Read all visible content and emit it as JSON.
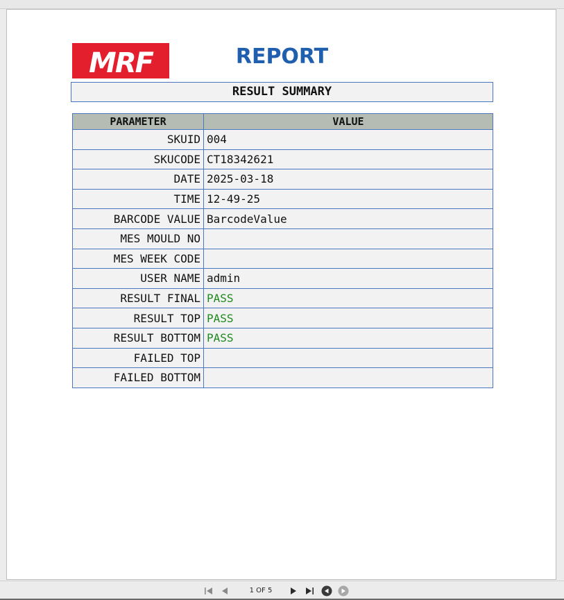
{
  "report": {
    "logo_text": "MRF",
    "title": "REPORT",
    "summary_title": "RESULT SUMMARY"
  },
  "table": {
    "headers": [
      "PARAMETER",
      "VALUE"
    ],
    "rows": [
      {
        "param": "SKUID",
        "value": "004"
      },
      {
        "param": "SKUCODE",
        "value": "CT18342621"
      },
      {
        "param": "DATE",
        "value": "2025-03-18"
      },
      {
        "param": "TIME",
        "value": "12-49-25"
      },
      {
        "param": "BARCODE VALUE",
        "value": "BarcodeValue"
      },
      {
        "param": "MES MOULD NO",
        "value": ""
      },
      {
        "param": "MES WEEK CODE",
        "value": ""
      },
      {
        "param": "USER NAME",
        "value": "admin"
      },
      {
        "param": "RESULT FINAL",
        "value": "PASS"
      },
      {
        "param": "RESULT TOP",
        "value": "PASS"
      },
      {
        "param": "RESULT BOTTOM",
        "value": "PASS"
      },
      {
        "param": "FAILED TOP",
        "value": ""
      },
      {
        "param": "FAILED BOTTOM",
        "value": ""
      }
    ]
  },
  "toolbar": {
    "page_indicator": "1 OF 5",
    "buttons": [
      "first-page-icon",
      "previous-page-icon",
      "next-page-icon",
      "last-page-icon",
      "back-icon",
      "forward-icon"
    ]
  },
  "colors": {
    "logo_red": "#e31e2d",
    "title_blue": "#1f5fae",
    "table_border": "#4a76bf",
    "header_bg": "#b4bcb4",
    "pass_green": "#1c8a1c"
  }
}
